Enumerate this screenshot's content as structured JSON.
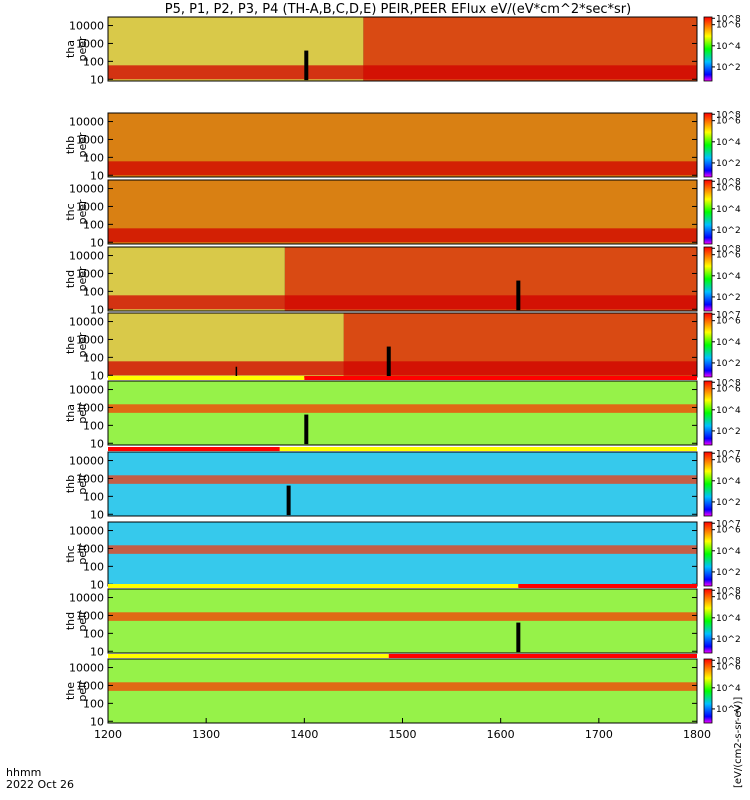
{
  "chart_data": {
    "type": "heatmap",
    "title": "P5, P1, P2, P3, P4 (TH-A,B,C,D,E) PEIR,PEER EFlux eV/(eV*cm^2*sec*sr)",
    "xlabel": "hhmm",
    "date_label": "2022 Oct 26",
    "x_ticks": [
      "1200",
      "1300",
      "1400",
      "1500",
      "1600",
      "1700",
      "1800"
    ],
    "xlim": [
      1200,
      1800
    ],
    "ylim": [
      8,
      30000
    ],
    "y_ticks": [
      "10",
      "100",
      "1000",
      "10000"
    ],
    "colorbar_label": "[eV/(cm2-s-sr-eV)]",
    "colorbar_ticks": [
      "10^2",
      "10^4",
      "10^6"
    ],
    "colors": {
      "low": "#0000ff",
      "mid": "#00ff00",
      "high": "#ff0000",
      "bar_red": "#ff0000",
      "bar_yellow": "#ffff00"
    },
    "panels": [
      {
        "probe": "tha",
        "species": "peer",
        "colorbar_max": "10^8",
        "bands": [
          {
            "from": 1200,
            "to": 1460,
            "state": "plasmasphere"
          },
          {
            "from": 1460,
            "to": 1800,
            "state": "plasma sheet"
          }
        ],
        "spike_times": [
          1402
        ],
        "spacecraft_marks": [],
        "quality_bar": "none"
      },
      {
        "probe": "thb",
        "species": "peer",
        "colorbar_max": "10^8",
        "bands": [
          {
            "from": 1200,
            "to": 1800,
            "state": "solar wind"
          }
        ],
        "spike_times": [],
        "spacecraft_marks": [],
        "quality_bar": "none"
      },
      {
        "probe": "thc",
        "species": "peer",
        "colorbar_max": "10^8",
        "bands": [
          {
            "from": 1200,
            "to": 1800,
            "state": "solar wind"
          }
        ],
        "spike_times": [],
        "spacecraft_marks": [],
        "quality_bar": "none"
      },
      {
        "probe": "thd",
        "species": "peer",
        "colorbar_max": "10^8",
        "bands": [
          {
            "from": 1200,
            "to": 1380,
            "state": "plasmasphere"
          },
          {
            "from": 1380,
            "to": 1800,
            "state": "plasma sheet"
          }
        ],
        "spike_times": [
          1618
        ],
        "spacecraft_marks": [],
        "quality_bar": "none"
      },
      {
        "probe": "the",
        "species": "peer",
        "colorbar_max": "10^7",
        "bands": [
          {
            "from": 1200,
            "to": 1440,
            "state": "plasmasphere"
          },
          {
            "from": 1440,
            "to": 1800,
            "state": "plasma sheet"
          }
        ],
        "spike_times": [
          1486
        ],
        "spacecraft_marks": [
          1330
        ],
        "quality_bar": "none"
      },
      {
        "probe": "tha",
        "species": "peir",
        "colorbar_max": "10^8",
        "bands": [
          {
            "from": 1200,
            "to": 1800,
            "state": "ion"
          }
        ],
        "spike_times": [
          1402
        ],
        "spacecraft_marks": [],
        "quality_bar": "top",
        "bar_split": 1400,
        "bar_left": "yellow",
        "bar_right": "red"
      },
      {
        "probe": "thb",
        "species": "peir",
        "colorbar_max": "10^7",
        "bands": [
          {
            "from": 1200,
            "to": 1800,
            "state": "solar wind ion"
          }
        ],
        "spike_times": [
          1384
        ],
        "spacecraft_marks": [],
        "quality_bar": "top",
        "bar_split": 1375,
        "bar_left": "red",
        "bar_right": "yellow"
      },
      {
        "probe": "thc",
        "species": "peir",
        "colorbar_max": "10^7",
        "bands": [
          {
            "from": 1200,
            "to": 1800,
            "state": "solar wind ion"
          }
        ],
        "spike_times": [],
        "spacecraft_marks": [],
        "quality_bar": "none"
      },
      {
        "probe": "thd",
        "species": "peir",
        "colorbar_max": "10^8",
        "bands": [
          {
            "from": 1200,
            "to": 1800,
            "state": "ion"
          }
        ],
        "spike_times": [
          1618
        ],
        "spacecraft_marks": [],
        "quality_bar": "top",
        "bar_split": 1618,
        "bar_left": "yellow",
        "bar_right": "red"
      },
      {
        "probe": "the",
        "species": "peir",
        "colorbar_max": "10^8",
        "bands": [
          {
            "from": 1200,
            "to": 1800,
            "state": "ion"
          }
        ],
        "spike_times": [],
        "spacecraft_marks": [],
        "quality_bar": "top",
        "bar_split": 1486,
        "bar_left": "yellow",
        "bar_right": "red"
      }
    ]
  }
}
